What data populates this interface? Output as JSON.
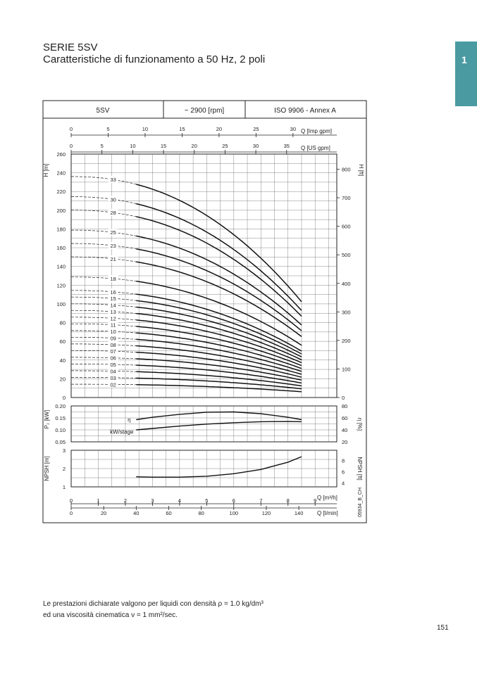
{
  "page": {
    "series_title": "SERIE 5SV",
    "subtitle": "Caratteristiche di funzionamento a 50 Hz, 2 poli",
    "tab_number": "1",
    "note_line1": "Le prestazioni dichiarate valgono per liquidi con densità ρ = 1.0 kg/dm³",
    "note_line2": "ed una viscosità cinematica ν = 1 mm²/sec.",
    "page_number": "151",
    "accent_color": "#4a9aa2"
  },
  "chart_data": {
    "type": "line",
    "header": {
      "model": "5SV",
      "speed": "~ 2900 [rpm]",
      "standard": "ISO 9906 - Annex A"
    },
    "side_code": "05934_B_CH",
    "axes": {
      "q_imp_gpm": {
        "label": "Q [Imp gpm]",
        "ticks": [
          "0",
          "5",
          "10",
          "15",
          "20",
          "25",
          "30"
        ]
      },
      "q_us_gpm": {
        "label": "Q [US gpm]",
        "ticks": [
          "0",
          "5",
          "10",
          "15",
          "20",
          "25",
          "30",
          "35"
        ]
      },
      "q_m3h": {
        "label": "Q [m³/h]",
        "ticks": [
          "0",
          "1",
          "2",
          "3",
          "4",
          "5",
          "6",
          "7",
          "8",
          "9"
        ],
        "range": [
          0,
          9.8
        ]
      },
      "q_lmin": {
        "label": "Q [l/min]",
        "ticks": [
          "0",
          "20",
          "40",
          "60",
          "80",
          "100",
          "120",
          "140"
        ]
      },
      "h_m": {
        "label": "H [m]",
        "ticks": [
          "0",
          "20",
          "40",
          "60",
          "80",
          "100",
          "120",
          "140",
          "160",
          "180",
          "200",
          "220",
          "240",
          "260"
        ],
        "range": [
          0,
          260
        ]
      },
      "h_ft": {
        "label": "H [ft]",
        "ticks": [
          "0",
          "100",
          "200",
          "300",
          "400",
          "500",
          "600",
          "700",
          "800"
        ]
      },
      "p_kw": {
        "label": "P₂ [kW]",
        "ticks": [
          "0.05",
          "0.10",
          "0.15",
          "0.20"
        ],
        "range": [
          0.05,
          0.2
        ]
      },
      "eta": {
        "label": "η [%]",
        "ticks": [
          "20",
          "40",
          "60",
          "80"
        ],
        "range": [
          20,
          80
        ]
      },
      "npsh_m": {
        "label": "NPSH [m]",
        "ticks": [
          "1",
          "2",
          "3"
        ],
        "range": [
          1,
          3
        ]
      },
      "npsh_ft": {
        "label": "NPSH [ft]",
        "ticks": [
          "4",
          "6",
          "8"
        ]
      }
    },
    "grid": true,
    "curve_labels": {
      "efficiency": "η",
      "power": "kW/stage"
    },
    "head_curves": [
      {
        "stage": "02",
        "shutoff_h": 14.2,
        "end_h": 6.2
      },
      {
        "stage": "03",
        "shutoff_h": 21.5,
        "end_h": 9.3
      },
      {
        "stage": "04",
        "shutoff_h": 28.6,
        "end_h": 12.4
      },
      {
        "stage": "05",
        "shutoff_h": 35.8,
        "end_h": 15.5
      },
      {
        "stage": "06",
        "shutoff_h": 42.9,
        "end_h": 18.6
      },
      {
        "stage": "07",
        "shutoff_h": 50.1,
        "end_h": 21.7
      },
      {
        "stage": "08",
        "shutoff_h": 57.2,
        "end_h": 24.8
      },
      {
        "stage": "09",
        "shutoff_h": 64.4,
        "end_h": 27.9
      },
      {
        "stage": "10",
        "shutoff_h": 71.5,
        "end_h": 31.0
      },
      {
        "stage": "11",
        "shutoff_h": 78.7,
        "end_h": 34.1
      },
      {
        "stage": "12",
        "shutoff_h": 85.8,
        "end_h": 37.2
      },
      {
        "stage": "13",
        "shutoff_h": 93.0,
        "end_h": 40.3
      },
      {
        "stage": "14",
        "shutoff_h": 100.1,
        "end_h": 43.4
      },
      {
        "stage": "15",
        "shutoff_h": 107.3,
        "end_h": 46.5
      },
      {
        "stage": "16",
        "shutoff_h": 114.4,
        "end_h": 49.6
      },
      {
        "stage": "18",
        "shutoff_h": 128.7,
        "end_h": 55.8
      },
      {
        "stage": "21",
        "shutoff_h": 150.2,
        "end_h": 65.1
      },
      {
        "stage": "23",
        "shutoff_h": 164.5,
        "end_h": 71.3
      },
      {
        "stage": "25",
        "shutoff_h": 178.8,
        "end_h": 77.5
      },
      {
        "stage": "28",
        "shutoff_h": 200.2,
        "end_h": 86.8
      },
      {
        "stage": "30",
        "shutoff_h": 214.5,
        "end_h": 93.0
      },
      {
        "stage": "33",
        "shutoff_h": 236.0,
        "end_h": 102.3
      }
    ],
    "q_start": 2.4,
    "q_end": 8.5,
    "efficiency_curve": {
      "q": [
        2.4,
        3.0,
        4.0,
        5.0,
        6.0,
        7.0,
        8.0,
        8.5
      ],
      "eta": [
        57,
        61,
        66,
        69.5,
        70,
        67,
        61,
        57
      ]
    },
    "power_curve": {
      "q": [
        2.4,
        3.0,
        4.0,
        5.0,
        6.0,
        7.0,
        8.0,
        8.5
      ],
      "kw": [
        0.1,
        0.106,
        0.116,
        0.124,
        0.13,
        0.134,
        0.135,
        0.134
      ]
    },
    "npsh_curve": {
      "q": [
        2.4,
        3.0,
        4.0,
        5.0,
        6.0,
        7.0,
        8.0,
        8.5
      ],
      "npsh": [
        1.55,
        1.53,
        1.53,
        1.58,
        1.72,
        1.95,
        2.35,
        2.65
      ]
    }
  }
}
